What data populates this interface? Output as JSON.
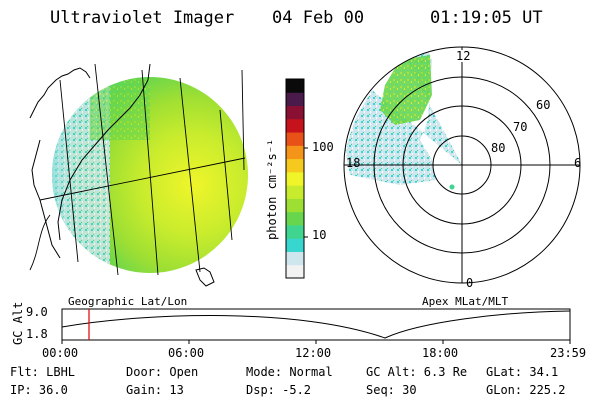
{
  "header": {
    "instrument": "Ultraviolet Imager",
    "date": "04 Feb 00",
    "time": "01:19:05 UT"
  },
  "colorbar": {
    "unit_label": "photon cm⁻²s⁻¹",
    "ticks": [
      "100",
      "10"
    ],
    "colors": [
      "#f2f2f2",
      "#cfe6ef",
      "#37d6cf",
      "#3fd58f",
      "#68d64c",
      "#9edf33",
      "#c8ec2d",
      "#f0f52a",
      "#f6c91e",
      "#f49519",
      "#e85218",
      "#c6121a",
      "#8a1033",
      "#4a1a4a",
      "#0a0a0a"
    ]
  },
  "geo_panel": {
    "label": "Geographic Lat/Lon"
  },
  "polar_panel": {
    "label": "Apex MLat/MLT",
    "mlt_labels": [
      "12",
      "18",
      "6",
      "0"
    ],
    "lat_labels": [
      "60",
      "70",
      "80"
    ]
  },
  "timeline": {
    "ylabel": "GC Alt",
    "y_ticks": [
      "9.0",
      "1.8"
    ],
    "x_ticks": [
      "00:00",
      "06:00",
      "12:00",
      "18:00",
      "23:59"
    ],
    "marker_time": "01:19:05"
  },
  "info": {
    "row1": {
      "flt": "Flt: LBHL",
      "door": "Door: Open",
      "mode": "Mode: Normal",
      "gcalt": "GC Alt: 6.3 Re",
      "glat": "GLat:  34.1"
    },
    "row2": {
      "ip": "IP: 36.0",
      "gain": "Gain: 13",
      "dsp": "Dsp:   -5.2",
      "seq": "Seq: 30",
      "glon": "GLon: 225.2"
    }
  }
}
